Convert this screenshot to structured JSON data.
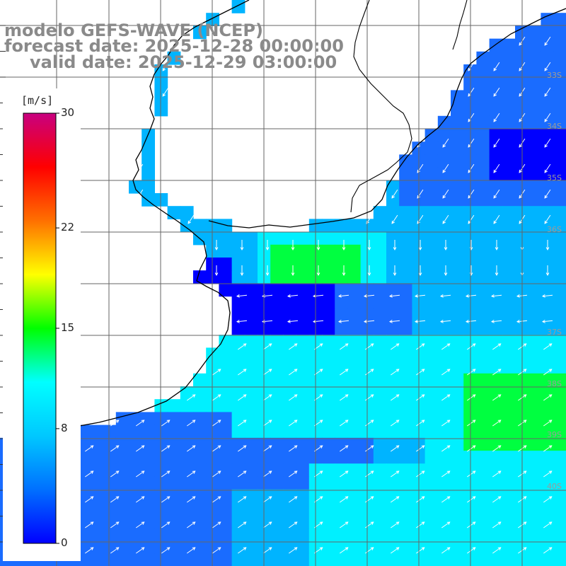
{
  "header": {
    "model": "modelo GEFS-WAVE (NCEP)",
    "forecast_date": "forecast date: 2025-12-28 00:00:00",
    "valid_date": "valid date: 2025-12-29 03:00:00"
  },
  "colorbar": {
    "unit": "[m/s]",
    "ticks": [
      {
        "value": 30,
        "label": "30"
      },
      {
        "value": 22,
        "label": "22"
      },
      {
        "value": 15,
        "label": "15"
      },
      {
        "value": 8,
        "label": "8"
      },
      {
        "value": 0,
        "label": "0"
      }
    ],
    "colors": [
      "#0000ff",
      "#0070ff",
      "#00c8ff",
      "#00ffff",
      "#00ff00",
      "#ffff00",
      "#ff7000",
      "#ff0000",
      "#c80080"
    ]
  },
  "lat_labels": [
    "33S",
    "34S",
    "35S",
    "36S",
    "37S",
    "38S",
    "39S",
    "40S"
  ],
  "legend_colors": {
    "deep_blue": "#0000ff",
    "blue": "#1a6cff",
    "light_blue": "#00b4ff",
    "cyan": "#00f0ff",
    "green": "#00ff40",
    "land": "#ffffff",
    "coast": "#000000",
    "grid": "#666666",
    "arrow": "#ffffff"
  }
}
